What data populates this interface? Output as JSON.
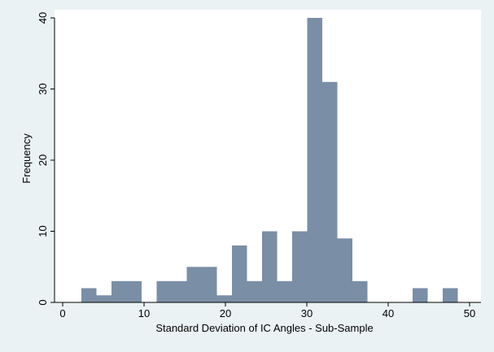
{
  "colors": {
    "frame_bg": "#eaf2f3",
    "plot_bg": "#ffffff",
    "bar_fill": "#7a8ea6",
    "axis": "#000000"
  },
  "chart_data": {
    "type": "bar",
    "xlabel": "Standard Deviation of IC Angles - Sub-Sample",
    "ylabel": "Frequency",
    "xlim": [
      -1,
      51
    ],
    "ylim": [
      0,
      40
    ],
    "x_ticks": [
      0,
      10,
      20,
      30,
      40,
      50
    ],
    "y_ticks": [
      0,
      10,
      20,
      30,
      40
    ],
    "grid": false,
    "bin_width": 1.85,
    "bin_starts": [
      2.3,
      4.15,
      6.0,
      7.85,
      9.7,
      11.55,
      13.4,
      15.25,
      17.1,
      18.95,
      20.8,
      22.65,
      24.5,
      26.35,
      28.2,
      30.05,
      31.9,
      33.75,
      35.6,
      37.45,
      39.3,
      41.15,
      43.0,
      44.85,
      46.7,
      48.55
    ],
    "values": [
      2,
      1,
      3,
      3,
      0,
      3,
      3,
      5,
      5,
      1,
      8,
      3,
      10,
      3,
      10,
      40,
      31,
      9,
      3,
      0,
      0,
      0,
      2,
      0,
      2,
      0
    ]
  }
}
